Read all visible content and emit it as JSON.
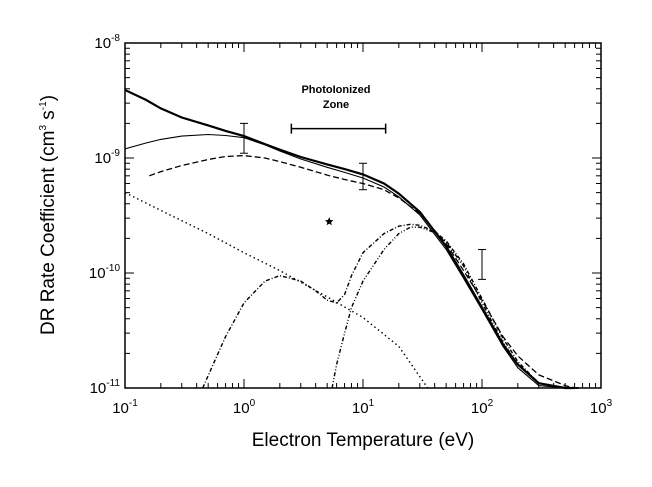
{
  "chart_data": {
    "type": "line",
    "xlabel": "Electron Temperature (eV)",
    "ylabel": "DR Rate Coefficient (cm³ s⁻¹)",
    "ylabel_parts": {
      "base": "DR Rate Coefficient (cm",
      "exp1": "3",
      "mid": " s",
      "exp2": "-1",
      "end": ")"
    },
    "x_scale": "log",
    "y_scale": "log",
    "xlim": [
      0.1,
      1000
    ],
    "ylim": [
      1e-11,
      1e-08
    ],
    "x_ticks": [
      {
        "value": 0.1,
        "base": "10",
        "exp": "-1"
      },
      {
        "value": 1,
        "base": "10",
        "exp": "0"
      },
      {
        "value": 10,
        "base": "10",
        "exp": "1"
      },
      {
        "value": 100,
        "base": "10",
        "exp": "2"
      },
      {
        "value": 1000,
        "base": "10",
        "exp": "3"
      }
    ],
    "y_ticks": [
      {
        "value": 1e-11,
        "base": "10",
        "exp": "-11"
      },
      {
        "value": 1e-10,
        "base": "10",
        "exp": "-10"
      },
      {
        "value": 1e-09,
        "base": "10",
        "exp": "-9"
      },
      {
        "value": 1e-08,
        "base": "10",
        "exp": "-8"
      }
    ],
    "grid": false,
    "annotation": {
      "line1": "PhotoIonized",
      "line2": "Zone",
      "x_range": [
        2.5,
        15.5
      ],
      "y": 1.8e-09
    },
    "series": [
      {
        "style": "solid-thick",
        "x": [
          0.1,
          0.15,
          0.2,
          0.3,
          0.5,
          0.7,
          1,
          1.5,
          2,
          3,
          5,
          7,
          10,
          15,
          20,
          30,
          50,
          70,
          100,
          150,
          200,
          300,
          500,
          600
        ],
        "y": [
          3.9e-09,
          3.2e-09,
          2.7e-09,
          2.25e-09,
          1.92e-09,
          1.72e-09,
          1.55e-09,
          1.32e-09,
          1.18e-09,
          1.02e-09,
          8.8e-10,
          8e-10,
          7.2e-10,
          6e-10,
          4.9e-10,
          3.4e-10,
          1.7e-10,
          9.5e-11,
          5e-11,
          2.4e-11,
          1.6e-11,
          1.1e-11,
          1e-11,
          1e-11
        ]
      },
      {
        "style": "solid-thin",
        "x": [
          0.1,
          0.15,
          0.2,
          0.3,
          0.5,
          0.7,
          1,
          1.5,
          2,
          3,
          5,
          7,
          10,
          15,
          20,
          30,
          50,
          70,
          100,
          150,
          200,
          300,
          500,
          600
        ],
        "y": [
          1.2e-09,
          1.35e-09,
          1.45e-09,
          1.55e-09,
          1.6e-09,
          1.57e-09,
          1.5e-09,
          1.3e-09,
          1.15e-09,
          9.8e-10,
          8.3e-10,
          7.5e-10,
          6.7e-10,
          5.6e-10,
          4.6e-10,
          3.2e-10,
          1.6e-10,
          9e-11,
          4.8e-11,
          2.3e-11,
          1.5e-11,
          1.05e-11,
          1e-11,
          1e-11
        ]
      },
      {
        "style": "dashed",
        "x": [
          0.16,
          0.2,
          0.3,
          0.5,
          0.7,
          1,
          1.5,
          2,
          3,
          5,
          7,
          10,
          15,
          20,
          30,
          50,
          70,
          100,
          150,
          200,
          300,
          500,
          600,
          650
        ],
        "y": [
          7e-10,
          7.6e-10,
          8.6e-10,
          9.7e-10,
          1.03e-09,
          1.05e-09,
          1e-09,
          9.3e-10,
          8.3e-10,
          7.1e-10,
          6.5e-10,
          6e-10,
          5.3e-10,
          4.5e-10,
          3.3e-10,
          1.8e-10,
          1.05e-10,
          5.8e-11,
          2.8e-11,
          1.9e-11,
          1.3e-11,
          1.05e-11,
          1e-11,
          1e-11
        ]
      },
      {
        "style": "dotted",
        "x": [
          0.1,
          0.2,
          0.5,
          1,
          2,
          5,
          10,
          20,
          35
        ],
        "y": [
          5e-10,
          3.5e-10,
          2.2e-10,
          1.5e-10,
          1.05e-10,
          6.2e-11,
          4.1e-11,
          2.3e-11,
          1e-11
        ]
      },
      {
        "style": "dash-dot",
        "x": [
          0.45,
          0.55,
          0.7,
          1,
          1.5,
          2,
          3,
          4,
          5,
          6,
          7,
          8,
          10,
          15,
          20,
          25,
          30,
          40,
          50,
          70,
          100,
          150,
          200,
          300,
          500,
          650
        ],
        "y": [
          1e-11,
          1.6e-11,
          2.8e-11,
          5.5e-11,
          8.5e-11,
          9.5e-11,
          8.5e-11,
          7e-11,
          5.8e-11,
          5.5e-11,
          6.5e-11,
          9.5e-11,
          1.5e-10,
          2.2e-10,
          2.55e-10,
          2.65e-10,
          2.6e-10,
          2.3e-10,
          1.9e-10,
          1.2e-10,
          6e-11,
          2.7e-11,
          1.7e-11,
          1.1e-11,
          1e-11,
          1e-11
        ]
      },
      {
        "style": "dash-dot-dot",
        "x": [
          5.5,
          6,
          7,
          8,
          10,
          15,
          20,
          25,
          30,
          40,
          50,
          70,
          100,
          150,
          200,
          300,
          500,
          650
        ],
        "y": [
          1e-11,
          1.6e-11,
          3e-11,
          5e-11,
          8.5e-11,
          1.6e-10,
          2.2e-10,
          2.5e-10,
          2.5e-10,
          2.25e-10,
          1.85e-10,
          1.15e-10,
          5.5e-11,
          2.5e-11,
          1.6e-11,
          1.1e-11,
          1e-11,
          1e-11
        ]
      }
    ],
    "error_bars": [
      {
        "x": 1,
        "y": 1.5e-09,
        "low": 1.1e-09,
        "high": 2e-09
      },
      {
        "x": 10,
        "y": 7e-10,
        "low": 5.3e-10,
        "high": 9e-10
      },
      {
        "x": 100,
        "y": 1.2e-10,
        "low": 8.8e-11,
        "high": 1.6e-10
      }
    ],
    "marker": {
      "x": 5.2,
      "y": 2.8e-10,
      "shape": "star"
    }
  }
}
